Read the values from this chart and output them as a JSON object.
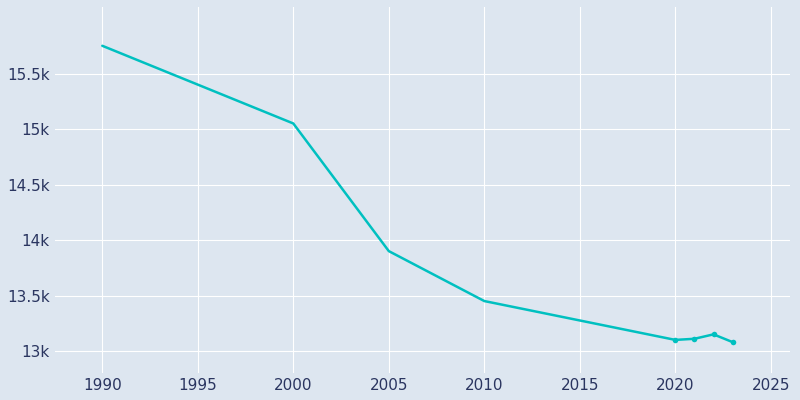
{
  "years": [
    1990,
    2000,
    2005,
    2010,
    2020,
    2021,
    2022,
    2023
  ],
  "population": [
    15750,
    15050,
    13900,
    13450,
    13100,
    13110,
    13150,
    13080
  ],
  "line_color": "#00c0c0",
  "bg_color": "#dde6f0",
  "grid_color": "#ffffff",
  "tick_color": "#2a3560",
  "xlim": [
    1987.5,
    2026
  ],
  "ylim": [
    12800,
    16100
  ],
  "xticks": [
    1990,
    1995,
    2000,
    2005,
    2010,
    2015,
    2020,
    2025
  ],
  "yticks": [
    13000,
    13500,
    14000,
    14500,
    15000,
    15500
  ],
  "ytick_labels": [
    "13k",
    "13.5k",
    "14k",
    "14.5k",
    "15k",
    "15.5k"
  ],
  "marker_years": [
    2020,
    2021,
    2022,
    2023
  ],
  "figsize": [
    8.0,
    4.0
  ],
  "dpi": 100
}
